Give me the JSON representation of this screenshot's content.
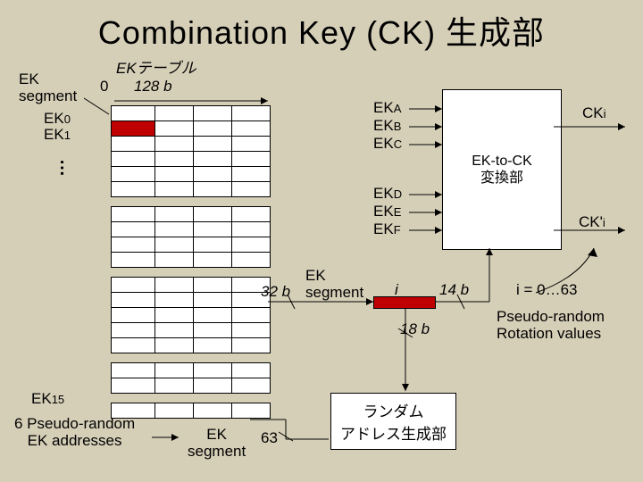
{
  "title": "Combination Key (CK) 生成部",
  "ek_table_label": "EKテーブル",
  "zero": "0",
  "table_width": "128 b",
  "ek_segment": "EK\nsegment",
  "ek0": "EK",
  "ek0s": "0",
  "ek1": "EK",
  "ek1s": "1",
  "ek15": "EK",
  "ek15s": "15",
  "six_addr": "6 Pseudo-random\nEK addresses",
  "ek_seg_lbl": "EK\nsegment",
  "sixty_three": "63",
  "thirtytwo_b": "32 b",
  "ek_seg_mid": "EK\nsegment",
  "i": "i",
  "fourteen_b": "14 b",
  "eighteen_b": "18 b",
  "ek_a": "EK",
  "a": "A",
  "ek_b": "EK",
  "b": "B",
  "ek_c": "EK",
  "c": "C",
  "ek_d": "EK",
  "d": "D",
  "ek_e": "EK",
  "e": "E",
  "ek_f": "EK",
  "f": "F",
  "conv": "EK-to-CK\n変換部",
  "cki": "CK",
  "is": "i",
  "ckpi": "CK'",
  "ips": "i",
  "rand_box": "ランダム\nアドレス生成部",
  "i_range": "i = 0…63",
  "pseudo_rot": "Pseudo-random\nRotation values",
  "table": {
    "cols": 4,
    "groups": [
      6,
      4,
      5,
      2,
      1
    ]
  },
  "colors": {
    "red": "#c00000",
    "bg": "#d6cfb8"
  }
}
